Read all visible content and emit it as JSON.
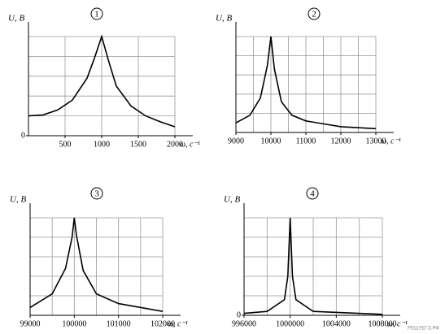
{
  "chart_data": [
    {
      "type": "line",
      "label": "1",
      "y_label": "U, В",
      "x_label": "ω, с⁻¹",
      "color": "#000000",
      "x": [
        0,
        200,
        400,
        600,
        800,
        900,
        1000,
        1100,
        1200,
        1400,
        1600,
        1800,
        2000
      ],
      "values": [
        1.0,
        1.05,
        1.3,
        1.8,
        2.9,
        3.9,
        5.0,
        3.7,
        2.5,
        1.5,
        1.0,
        0.7,
        0.45
      ],
      "xlim": [
        0,
        2000
      ],
      "ylim": [
        0,
        5
      ],
      "xticks": [
        500,
        1000,
        1500,
        2000
      ],
      "yticks": [
        0
      ],
      "xgrid": [
        500,
        1000,
        1500,
        2000
      ],
      "ygrid": [
        1,
        2,
        3,
        4,
        5
      ]
    },
    {
      "type": "line",
      "label": "2",
      "y_label": "U, В",
      "x_label": "ω, с⁻¹",
      "color": "#000000",
      "x": [
        9000,
        9400,
        9700,
        9900,
        10000,
        10100,
        10300,
        10600,
        11000,
        12000,
        13000
      ],
      "values": [
        0.5,
        0.9,
        1.8,
        3.5,
        5.0,
        3.3,
        1.6,
        0.9,
        0.6,
        0.3,
        0.2
      ],
      "xlim": [
        9000,
        13000
      ],
      "ylim": [
        0,
        5
      ],
      "xticks": [
        9000,
        10000,
        11000,
        12000,
        13000
      ],
      "xgrid": [
        9500,
        10000,
        10500,
        11000,
        11500,
        12000,
        12500,
        13000
      ],
      "ygrid": [
        1,
        2,
        3,
        4,
        5
      ]
    },
    {
      "type": "line",
      "label": "3",
      "y_label": "U, В",
      "x_label": "ω, с⁻¹",
      "color": "#000000",
      "x": [
        99000,
        99500,
        99800,
        99950,
        100000,
        100050,
        100200,
        100500,
        101000,
        102000
      ],
      "values": [
        0.4,
        1.1,
        2.4,
        4.0,
        5.0,
        4.1,
        2.3,
        1.1,
        0.6,
        0.2
      ],
      "xlim": [
        99000,
        102000
      ],
      "ylim": [
        0,
        5
      ],
      "xticks": [
        99000,
        100000,
        101000,
        102000
      ],
      "xgrid": [
        99500,
        100000,
        100500,
        101000,
        101500,
        102000
      ],
      "ygrid": [
        1,
        2,
        3,
        4,
        5
      ]
    },
    {
      "type": "line",
      "label": "4",
      "y_label": "U, В",
      "x_label": "ω, с⁻¹",
      "color": "#000000",
      "x": [
        996000,
        998000,
        999500,
        999800,
        1000000,
        1000200,
        1000500,
        1002000,
        1008000
      ],
      "values": [
        0.1,
        0.2,
        0.8,
        2.0,
        5.0,
        2.0,
        0.8,
        0.2,
        0.05
      ],
      "xlim": [
        996000,
        1008000
      ],
      "ylim": [
        0,
        5
      ],
      "xticks": [
        996000,
        1000000,
        1004000,
        1008000
      ],
      "yticks": [
        0
      ],
      "xgrid": [
        998000,
        1000000,
        1002000,
        1004000,
        1006000,
        1008000
      ],
      "ygrid": [
        1,
        2,
        3,
        4,
        5
      ]
    }
  ],
  "watermark": "РЕШУЕГЭ.РФ"
}
